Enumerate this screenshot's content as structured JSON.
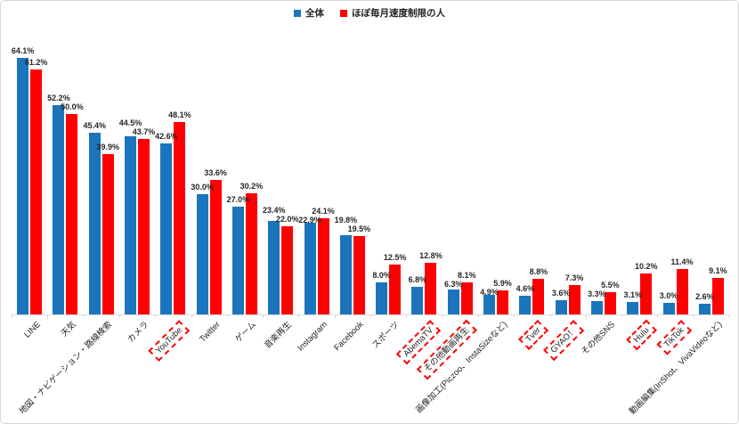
{
  "chart_data": {
    "type": "bar",
    "title": "",
    "xlabel": "",
    "ylabel": "",
    "value_suffix": "%",
    "ylim": [
      0,
      70
    ],
    "grid": false,
    "legend_position": "top",
    "axis_color": "#d9d9d9",
    "highlight_box_color": "#ff0000",
    "categories": [
      "LINE",
      "天気",
      "地図・ナビゲーション・路線検索",
      "カメラ",
      "YouTube",
      "Twitter",
      "ゲーム",
      "音楽再生",
      "Instagram",
      "Facebook",
      "スポーツ",
      "AbemaTV",
      "その他動画再生",
      "画像加工(Piczoo、InstaSizeなど)",
      "Tver",
      "GYAO！",
      "その他SNS",
      "Hulu",
      "TikTok",
      "動画編集(InShot、VivaVideoなど)"
    ],
    "highlighted_categories": [
      "YouTube",
      "AbemaTV",
      "その他動画再生",
      "Tver",
      "GYAO！",
      "Hulu",
      "TikTok"
    ],
    "series": [
      {
        "name": "全体",
        "color": "#1b75bc",
        "values": [
          64.1,
          52.2,
          45.4,
          44.5,
          42.6,
          30.0,
          27.0,
          23.4,
          22.9,
          19.8,
          8.0,
          6.8,
          6.3,
          4.9,
          4.6,
          3.6,
          3.3,
          3.1,
          3.0,
          2.6
        ]
      },
      {
        "name": "ほぼ毎月速度制限の人",
        "color": "#ff0000",
        "values": [
          61.2,
          50.0,
          39.9,
          43.7,
          48.1,
          33.6,
          30.2,
          22.0,
          24.1,
          19.5,
          12.5,
          12.8,
          8.1,
          5.9,
          8.8,
          7.3,
          5.5,
          10.2,
          11.4,
          9.1
        ]
      }
    ]
  }
}
